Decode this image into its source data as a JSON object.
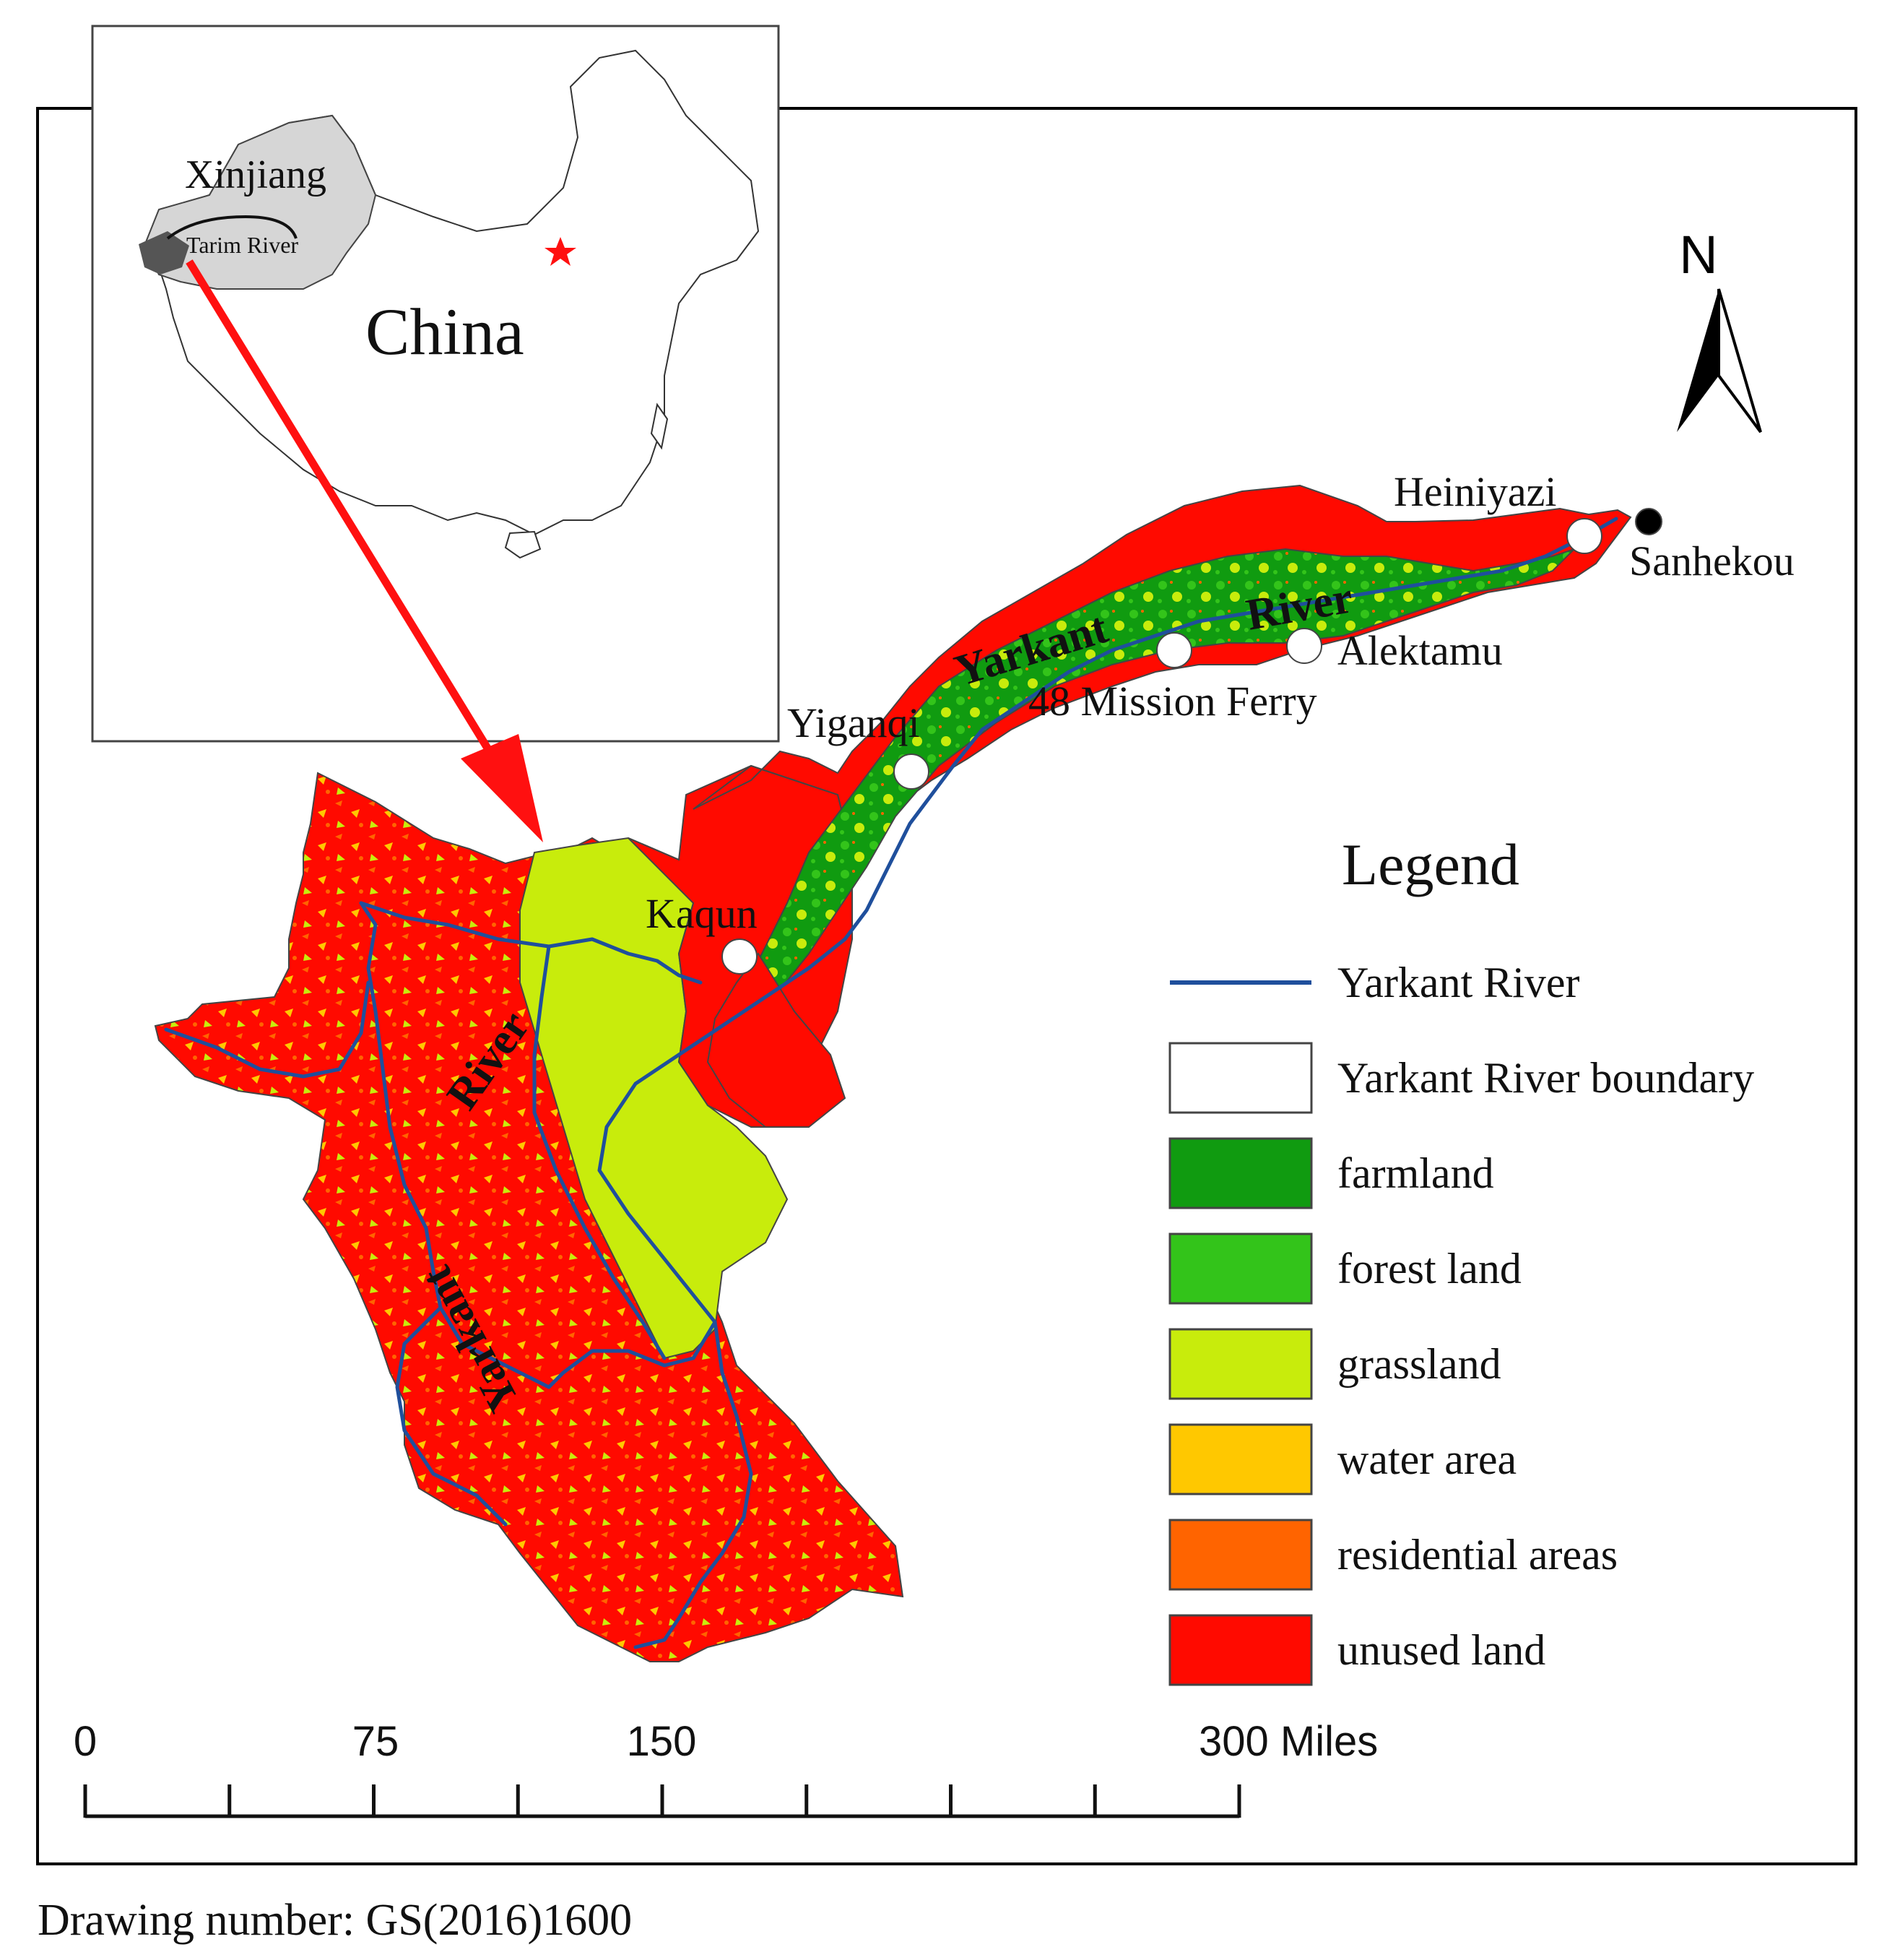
{
  "inset": {
    "region_label": "Xinjiang",
    "river_label": "Tarim River",
    "country_label": "China"
  },
  "north_arrow": {
    "label": "N"
  },
  "places": {
    "heiniyazi": "Heiniyazi",
    "sanhekou": "Sanhekou",
    "alektamu": "Alektamu",
    "mission_ferry": "48 Mission Ferry",
    "yiganqi": "Yiganqi",
    "kaqun": "Kaqun"
  },
  "river_labels": {
    "yarkant_east": "Yarkant",
    "river_east": "River",
    "river_west": "River",
    "yarkant_west": "Yarkant"
  },
  "legend": {
    "title": "Legend",
    "items": [
      {
        "label": "Yarkant River",
        "symbol": "line",
        "color": "#1f4f9c"
      },
      {
        "label": "Yarkant River boundary",
        "symbol": "box",
        "color": "#ffffff"
      },
      {
        "label": "farmland",
        "symbol": "box",
        "color": "#109b10"
      },
      {
        "label": "forest land",
        "symbol": "box",
        "color": "#33c41a"
      },
      {
        "label": "grassland",
        "symbol": "box",
        "color": "#c8ec0c"
      },
      {
        "label": "water area",
        "symbol": "box",
        "color": "#ffc800"
      },
      {
        "label": "residential areas",
        "symbol": "box",
        "color": "#ff6400"
      },
      {
        "label": "unused land",
        "symbol": "box",
        "color": "#ff0a00"
      }
    ]
  },
  "scale_bar": {
    "labels": [
      "0",
      "75",
      "150",
      "300 Miles"
    ]
  },
  "footer": {
    "drawing_number": "Drawing number: GS(2016)1600"
  },
  "colors": {
    "unused": "#ff0a00",
    "grassland": "#c8ec0c",
    "farmland": "#109b10",
    "forest": "#33c41a",
    "water": "#ffc800",
    "residential": "#ff6400",
    "river": "#1f4f9c",
    "arrow": "#ff1010",
    "inset_xinjiang": "#d6d6d6",
    "inset_basin": "#555555"
  }
}
